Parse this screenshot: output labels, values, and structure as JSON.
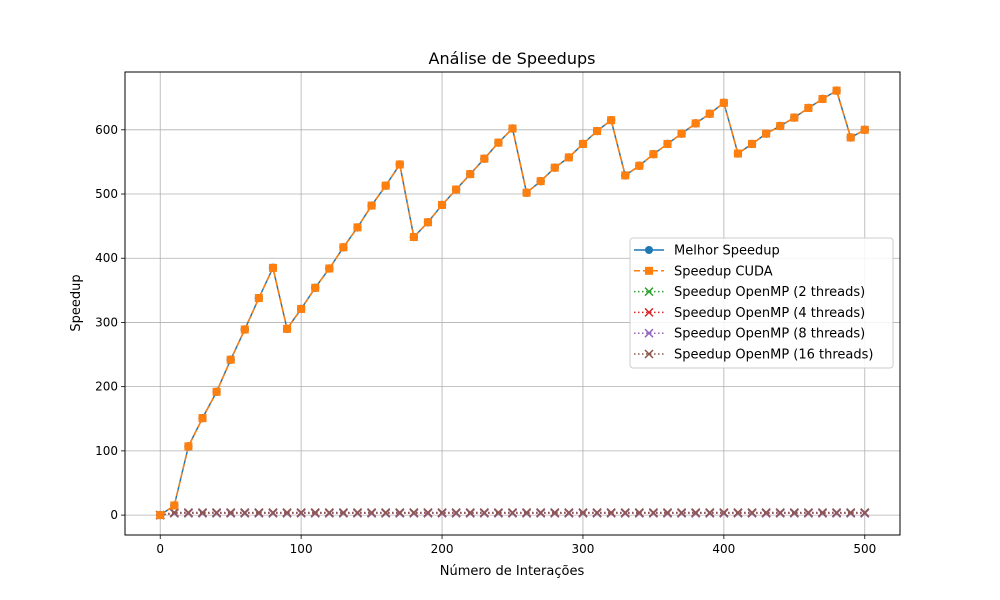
{
  "chart_data": {
    "type": "line",
    "title": "Análise de Speedups",
    "xlabel": "Número de Interações",
    "ylabel": "Speedup",
    "xlim": [
      -25,
      525
    ],
    "ylim": [
      -31,
      690
    ],
    "xticks": [
      0,
      100,
      200,
      300,
      400,
      500
    ],
    "yticks": [
      0,
      100,
      200,
      300,
      400,
      500,
      600
    ],
    "grid": true,
    "legend_position": "center-right",
    "x": [
      0,
      10,
      20,
      30,
      40,
      50,
      60,
      70,
      80,
      90,
      100,
      110,
      120,
      130,
      140,
      150,
      160,
      170,
      180,
      190,
      200,
      210,
      220,
      230,
      240,
      250,
      260,
      270,
      280,
      290,
      300,
      310,
      320,
      330,
      340,
      350,
      360,
      370,
      380,
      390,
      400,
      410,
      420,
      430,
      440,
      450,
      460,
      470,
      480,
      490,
      500
    ],
    "series": [
      {
        "name": "Melhor Speedup",
        "color": "#1f77b4",
        "linestyle": "solid",
        "marker": "circle",
        "values": [
          0,
          15,
          107,
          151,
          192,
          242,
          289,
          338,
          385,
          290,
          321,
          354,
          384,
          417,
          448,
          482,
          513,
          546,
          433,
          456,
          483,
          507,
          531,
          555,
          580,
          602,
          502,
          520,
          541,
          557,
          578,
          598,
          615,
          529,
          544,
          562,
          578,
          594,
          610,
          625,
          642,
          563,
          578,
          594,
          606,
          619,
          634,
          648,
          661,
          588,
          600
        ]
      },
      {
        "name": "Speedup CUDA",
        "color": "#ff7f0e",
        "linestyle": "dashed",
        "marker": "square",
        "values": [
          0,
          15,
          107,
          151,
          192,
          242,
          289,
          338,
          385,
          290,
          321,
          354,
          384,
          417,
          448,
          482,
          513,
          546,
          433,
          456,
          483,
          507,
          531,
          555,
          580,
          602,
          502,
          520,
          541,
          557,
          578,
          598,
          615,
          529,
          544,
          562,
          578,
          594,
          610,
          625,
          642,
          563,
          578,
          594,
          606,
          619,
          634,
          648,
          661,
          588,
          600
        ]
      },
      {
        "name": "Speedup OpenMP (2 threads)",
        "color": "#2ca02c",
        "linestyle": "dotted",
        "marker": "x",
        "values": [
          0,
          3,
          3,
          3,
          3,
          3,
          3,
          3,
          3,
          3,
          3,
          3,
          3,
          3,
          3,
          3,
          3,
          3,
          3,
          3,
          3,
          3,
          3,
          3,
          3,
          3,
          3,
          3,
          3,
          3,
          3,
          3,
          3,
          3,
          3,
          3,
          3,
          3,
          3,
          3,
          3,
          3,
          3,
          3,
          3,
          3,
          3,
          3,
          3,
          3,
          3
        ]
      },
      {
        "name": "Speedup OpenMP (4 threads)",
        "color": "#d62728",
        "linestyle": "dotted",
        "marker": "x",
        "values": [
          0,
          3,
          3,
          3,
          3,
          3,
          3,
          3,
          3,
          3,
          3,
          3,
          3,
          3,
          3,
          3,
          3,
          3,
          3,
          3,
          3,
          3,
          3,
          3,
          3,
          3,
          3,
          3,
          3,
          3,
          3,
          3,
          3,
          3,
          3,
          3,
          3,
          3,
          3,
          3,
          3,
          3,
          3,
          3,
          3,
          3,
          3,
          3,
          3,
          3,
          3
        ]
      },
      {
        "name": "Speedup OpenMP (8 threads)",
        "color": "#9467bd",
        "linestyle": "dotted",
        "marker": "x",
        "values": [
          0,
          3,
          3,
          3,
          3,
          3,
          3,
          3,
          3,
          3,
          3,
          3,
          3,
          3,
          3,
          3,
          3,
          3,
          3,
          3,
          3,
          3,
          3,
          3,
          3,
          3,
          3,
          3,
          3,
          3,
          3,
          3,
          3,
          3,
          3,
          3,
          3,
          3,
          3,
          3,
          3,
          3,
          3,
          3,
          3,
          3,
          3,
          3,
          3,
          3,
          3
        ]
      },
      {
        "name": "Speedup OpenMP (16 threads)",
        "color": "#8c564b",
        "linestyle": "dotted",
        "marker": "x",
        "values": [
          0,
          4,
          4,
          4,
          4,
          4,
          4,
          4,
          4,
          4,
          4,
          4,
          4,
          4,
          4,
          4,
          4,
          4,
          4,
          4,
          4,
          4,
          4,
          4,
          4,
          4,
          4,
          4,
          4,
          4,
          4,
          4,
          4,
          4,
          4,
          4,
          4,
          4,
          4,
          4,
          4,
          4,
          4,
          4,
          4,
          4,
          4,
          4,
          4,
          4,
          4
        ]
      }
    ]
  }
}
